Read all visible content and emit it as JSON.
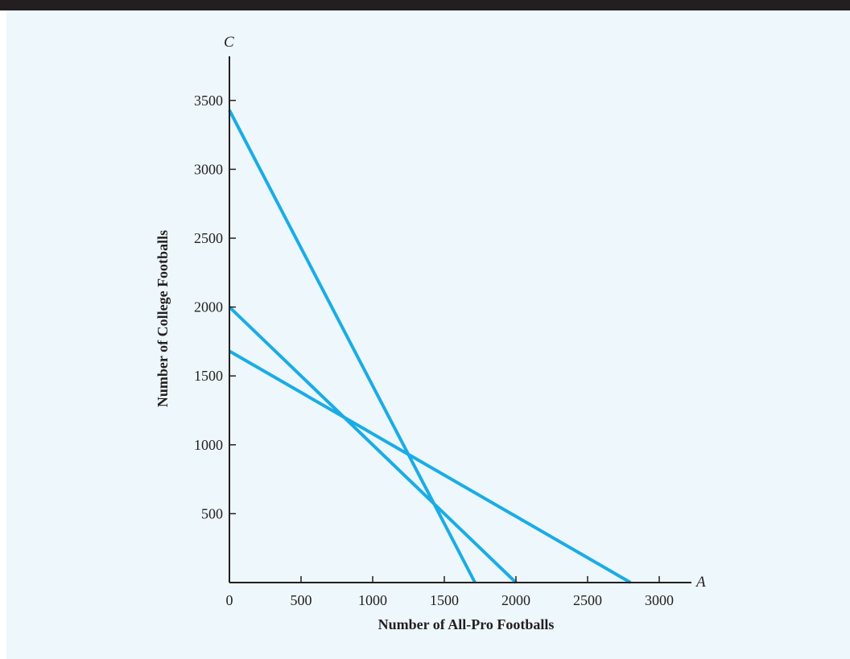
{
  "colors": {
    "background": "#eef7fb",
    "line": "#1aace6",
    "axis": "#231f20",
    "top_rule": "#231f20"
  },
  "chart_data": {
    "type": "line",
    "xlabel": "Number of All-Pro Footballs",
    "ylabel": "Number of College Footballs",
    "x_variable": "A",
    "y_variable": "C",
    "xlim": [
      0,
      3200
    ],
    "ylim": [
      0,
      3800
    ],
    "x_ticks": [
      0,
      500,
      1000,
      1500,
      2000,
      2500,
      3000
    ],
    "y_ticks": [
      500,
      1000,
      1500,
      2000,
      2500,
      3000,
      3500
    ],
    "x_tick_labels": [
      "0",
      "500",
      "1000",
      "1500",
      "2000",
      "2500",
      "3000"
    ],
    "y_tick_labels": [
      "500",
      "1000",
      "1500",
      "2000",
      "2500",
      "3000",
      "3500"
    ],
    "grid": false,
    "series": [
      {
        "x": [
          0,
          1714
        ],
        "y": [
          3429,
          0
        ]
      },
      {
        "x": [
          0,
          2000
        ],
        "y": [
          2000,
          0
        ]
      },
      {
        "x": [
          0,
          2800
        ],
        "y": [
          1680,
          0
        ]
      }
    ]
  }
}
